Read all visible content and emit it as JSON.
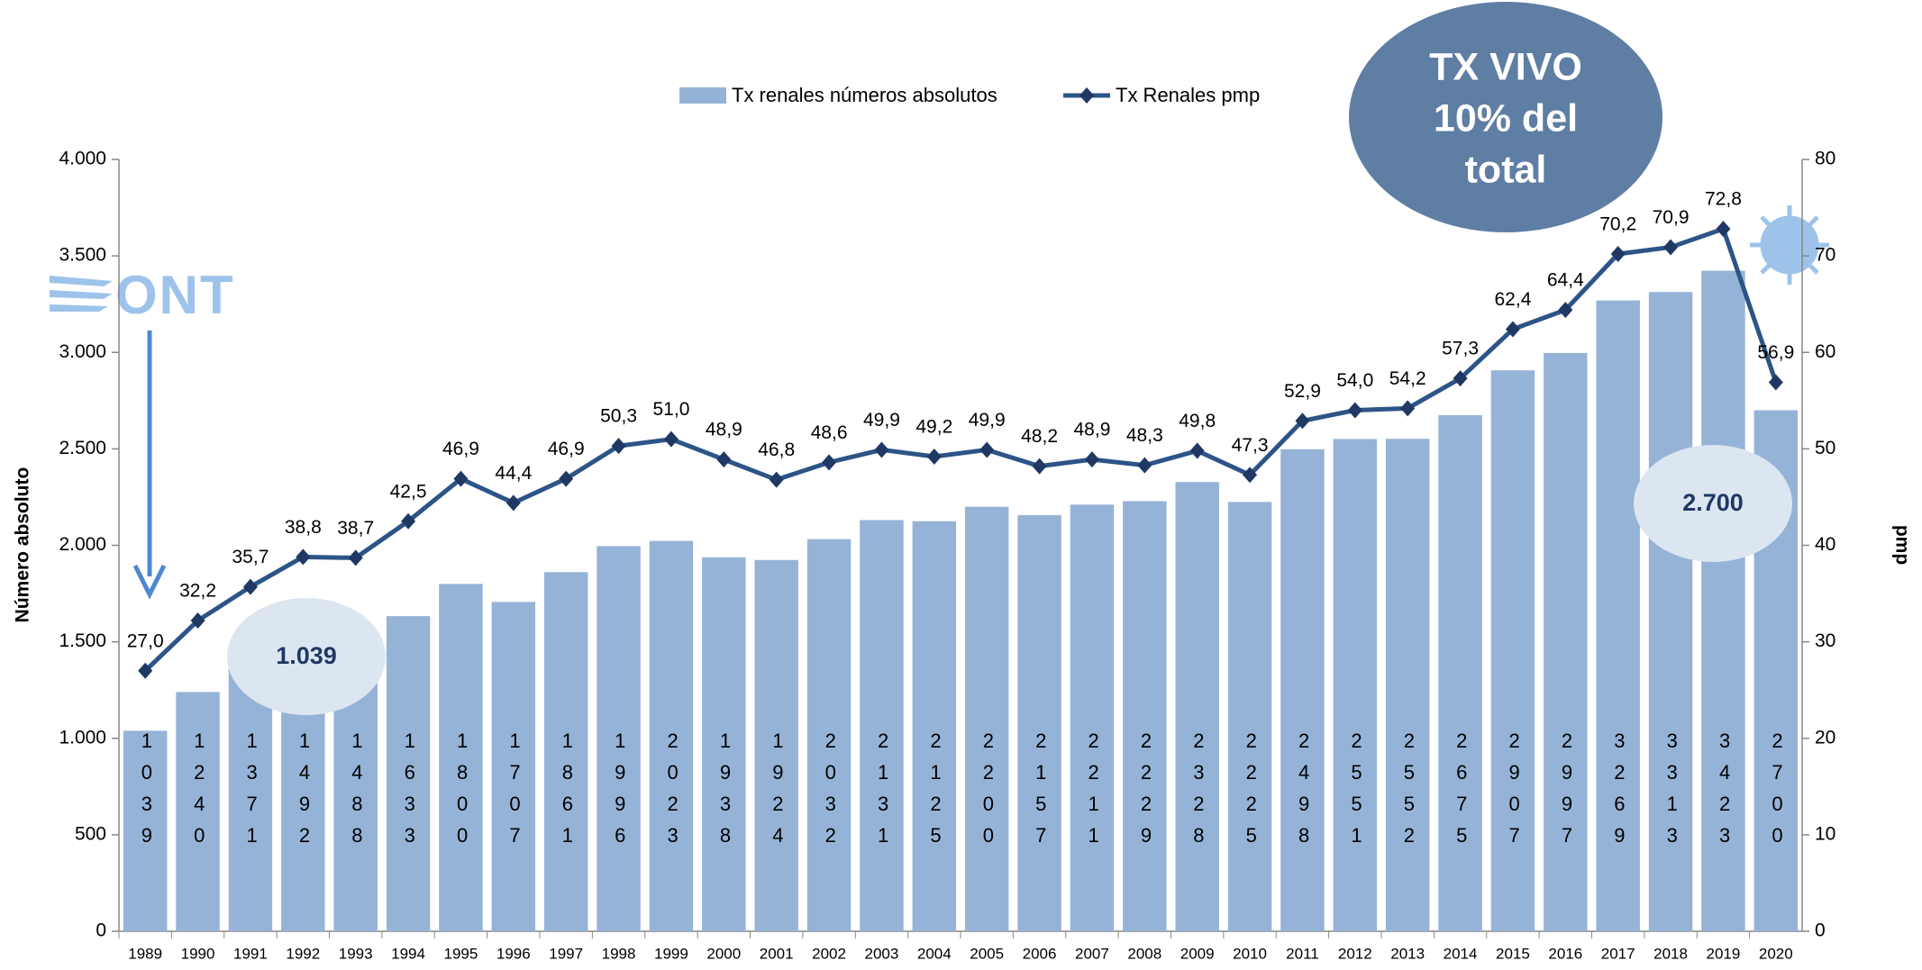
{
  "chart_data": {
    "type": "bar_line",
    "categories": [
      "1989",
      "1990",
      "1991",
      "1992",
      "1993",
      "1994",
      "1995",
      "1996",
      "1997",
      "1998",
      "1999",
      "2000",
      "2001",
      "2002",
      "2003",
      "2004",
      "2005",
      "2006",
      "2007",
      "2008",
      "2009",
      "2010",
      "2011",
      "2012",
      "2013",
      "2014",
      "2015",
      "2016",
      "2017",
      "2018",
      "2019",
      "2020"
    ],
    "series": [
      {
        "name": "Tx renales números absolutos",
        "type": "bar",
        "color": "#95b3d7",
        "values": [
          1039,
          1240,
          1371,
          1492,
          1488,
          1633,
          1800,
          1707,
          1861,
          1996,
          2023,
          1938,
          1924,
          2032,
          2131,
          2125,
          2200,
          2157,
          2211,
          2229,
          2328,
          2225,
          2498,
          2551,
          2552,
          2675,
          2907,
          2997,
          3269,
          3313,
          3423,
          2700
        ]
      },
      {
        "name": "Tx Renales pmp",
        "type": "line",
        "axis": "y2",
        "color": "#2c5487",
        "values": [
          27.0,
          32.2,
          35.7,
          38.8,
          38.7,
          42.5,
          46.9,
          44.4,
          46.9,
          50.3,
          51.0,
          48.9,
          46.8,
          48.6,
          49.9,
          49.2,
          49.9,
          48.2,
          48.9,
          48.3,
          49.8,
          47.3,
          52.9,
          54.0,
          54.2,
          57.3,
          62.4,
          64.4,
          70.2,
          70.9,
          72.8,
          56.9
        ],
        "value_labels": [
          "27,0",
          "32,2",
          "35,7",
          "38,8",
          "38,7",
          "42,5",
          "46,9",
          "44,4",
          "46,9",
          "50,3",
          "51,0",
          "48,9",
          "46,8",
          "48,6",
          "49,9",
          "49,2",
          "49,9",
          "48,2",
          "48,9",
          "48,3",
          "49,8",
          "47,3",
          "52,9",
          "54,0",
          "54,2",
          "57,3",
          "62,4",
          "64,4",
          "70,2",
          "70,9",
          "72,8",
          "56,9"
        ]
      }
    ],
    "ylabel": "Número absoluto",
    "y2label": "pmp",
    "ylim": [
      0,
      4000
    ],
    "yticks": [
      0,
      500,
      {
        "value": 1000,
        "label": "1.000"
      },
      {
        "value": 1500,
        "label": "1.500"
      },
      {
        "value": 2000,
        "label": "2.000"
      },
      {
        "value": 2500,
        "label": "2.500"
      },
      {
        "value": 3000,
        "label": "3.000"
      },
      {
        "value": 3500,
        "label": "3.500"
      },
      {
        "value": 4000,
        "label": "4.000"
      }
    ],
    "y2lim": [
      0,
      80
    ],
    "y2ticks": [
      0,
      10,
      20,
      30,
      40,
      50,
      60,
      70,
      80
    ],
    "legend": "top",
    "annotations": {
      "tx_vivo": [
        "TX VIVO",
        "10% del",
        "total"
      ],
      "first": "1.039",
      "last": "2.700",
      "logo": "ONT"
    }
  }
}
